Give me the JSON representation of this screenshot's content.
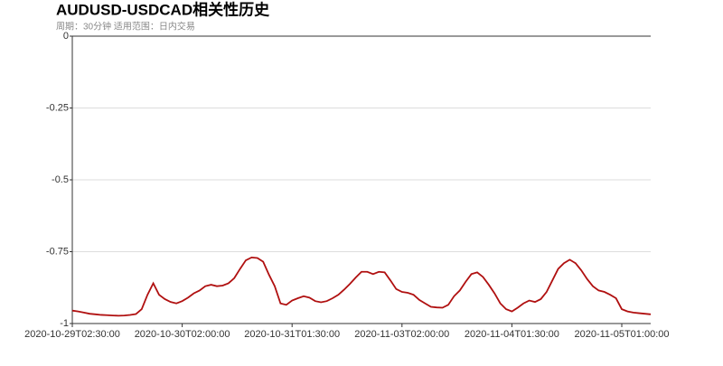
{
  "chart_data": {
    "type": "line",
    "title": "AUDUSD-USDCAD相关性历史",
    "subtitle": "周期：30分钟 适用范围：日内交易",
    "categories": [
      "2020-10-29T02:30:00",
      null,
      null,
      null,
      null,
      null,
      null,
      null,
      null,
      null,
      null,
      null,
      null,
      null,
      null,
      null,
      null,
      null,
      null,
      "2020-10-30T02:00:00",
      null,
      null,
      null,
      null,
      null,
      null,
      null,
      null,
      null,
      null,
      null,
      null,
      null,
      null,
      null,
      null,
      null,
      null,
      "2020-10-31T01:30:00",
      null,
      null,
      null,
      null,
      null,
      null,
      null,
      null,
      null,
      null,
      null,
      null,
      null,
      null,
      null,
      null,
      null,
      null,
      "2020-11-03T02:00:00",
      null,
      null,
      null,
      null,
      null,
      null,
      null,
      null,
      null,
      null,
      null,
      null,
      null,
      null,
      null,
      null,
      null,
      null,
      "2020-11-04T01:30:00",
      null,
      null,
      null,
      null,
      null,
      null,
      null,
      null,
      null,
      null,
      null,
      null,
      null,
      null,
      null,
      null,
      null,
      null,
      "2020-11-05T01:00:00",
      null,
      null,
      null,
      null,
      null
    ],
    "values": [
      -0.955,
      -0.958,
      -0.962,
      -0.966,
      -0.968,
      -0.97,
      -0.971,
      -0.972,
      -0.973,
      -0.972,
      -0.97,
      -0.967,
      -0.95,
      -0.9,
      -0.86,
      -0.9,
      -0.915,
      -0.925,
      -0.93,
      -0.922,
      -0.91,
      -0.895,
      -0.885,
      -0.87,
      -0.865,
      -0.87,
      -0.868,
      -0.86,
      -0.842,
      -0.81,
      -0.78,
      -0.77,
      -0.772,
      -0.785,
      -0.83,
      -0.87,
      -0.93,
      -0.935,
      -0.92,
      -0.912,
      -0.905,
      -0.91,
      -0.922,
      -0.926,
      -0.922,
      -0.912,
      -0.9,
      -0.882,
      -0.862,
      -0.84,
      -0.82,
      -0.82,
      -0.828,
      -0.82,
      -0.822,
      -0.85,
      -0.88,
      -0.89,
      -0.893,
      -0.9,
      -0.918,
      -0.93,
      -0.942,
      -0.944,
      -0.945,
      -0.935,
      -0.905,
      -0.885,
      -0.855,
      -0.828,
      -0.822,
      -0.838,
      -0.865,
      -0.895,
      -0.93,
      -0.95,
      -0.958,
      -0.945,
      -0.93,
      -0.92,
      -0.925,
      -0.915,
      -0.89,
      -0.85,
      -0.81,
      -0.79,
      -0.778,
      -0.79,
      -0.815,
      -0.845,
      -0.87,
      -0.885,
      -0.89,
      -0.9,
      -0.912,
      -0.95,
      -0.958,
      -0.962,
      -0.964,
      -0.966,
      -0.968
    ],
    "color": "#b01010",
    "ylim": [
      -1,
      0
    ],
    "yticks": [
      0,
      -0.25,
      -0.5,
      -0.75,
      -1
    ],
    "grid": true
  }
}
